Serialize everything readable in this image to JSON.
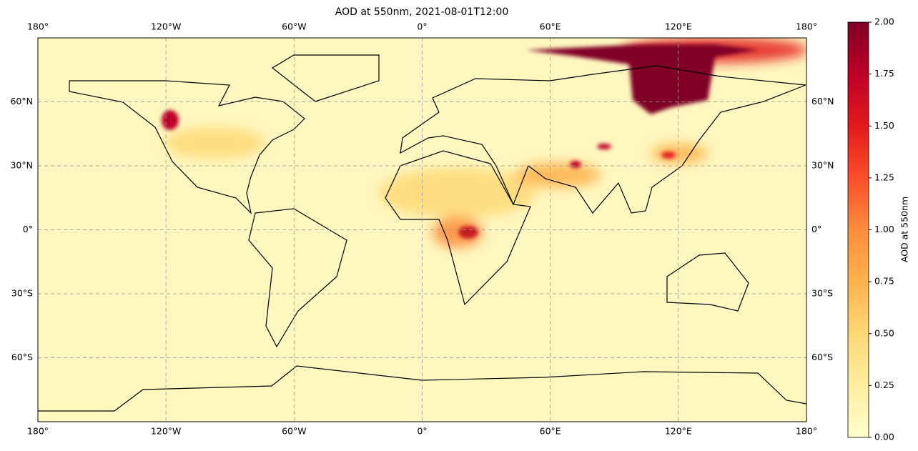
{
  "title": "AOD at 550nm, 2021-08-01T12:00",
  "map": {
    "lon_lim": [
      -180,
      180
    ],
    "lat_lim": [
      -90,
      90
    ],
    "lon_ticks": [
      {
        "value": -180,
        "label": "180°"
      },
      {
        "value": -120,
        "label": "120°W"
      },
      {
        "value": -60,
        "label": "60°W"
      },
      {
        "value": 0,
        "label": "0°"
      },
      {
        "value": 60,
        "label": "60°E"
      },
      {
        "value": 120,
        "label": "120°E"
      },
      {
        "value": 180,
        "label": "180°"
      }
    ],
    "lat_ticks": [
      {
        "value": 60,
        "label": "60°N"
      },
      {
        "value": 30,
        "label": "30°N"
      },
      {
        "value": 0,
        "label": "0°"
      },
      {
        "value": -30,
        "label": "30°S"
      },
      {
        "value": -60,
        "label": "60°S"
      }
    ]
  },
  "colorbar": {
    "label": "AOD at 550nm",
    "lim": [
      0,
      2
    ],
    "ticks": [
      {
        "value": 0,
        "label": "0.00"
      },
      {
        "value": 0.25,
        "label": "0.25"
      },
      {
        "value": 0.5,
        "label": "0.50"
      },
      {
        "value": 0.75,
        "label": "0.75"
      },
      {
        "value": 1,
        "label": "1.00"
      },
      {
        "value": 1.25,
        "label": "1.25"
      },
      {
        "value": 1.5,
        "label": "1.50"
      },
      {
        "value": 1.75,
        "label": "1.75"
      },
      {
        "value": 2,
        "label": "2.00"
      }
    ]
  }
}
